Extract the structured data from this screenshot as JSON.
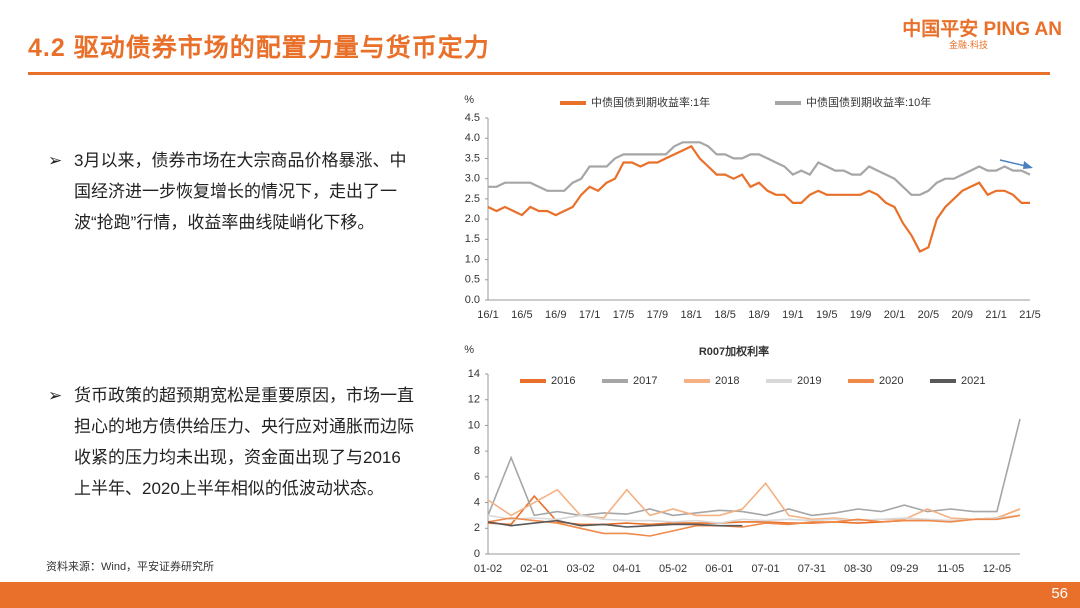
{
  "header": {
    "title": "4.2 驱动债券市场的配置力量与货币定力",
    "logo": "中国平安 PING AN",
    "logo_sub": "金融·科技"
  },
  "bullets": [
    "3月以来，债券市场在大宗商品价格暴涨、中国经济进一步恢复增长的情况下，走出了一波“抢跑”行情，收益率曲线陡峭化下移。",
    "货币政策的超预期宽松是重要原因，市场一直担心的地方债供给压力、央行应对通胀而边际收紧的压力均未出现，资金面出现了与2016上半年、2020上半年相似的低波动状态。"
  ],
  "source": "资料来源：Wind，平安证券研究所",
  "page_number": "56",
  "chart_data": [
    {
      "type": "line",
      "y_unit": "%",
      "categories": [
        "16/1",
        null,
        null,
        null,
        "16/5",
        null,
        null,
        null,
        "16/9",
        null,
        null,
        null,
        "17/1",
        null,
        null,
        null,
        "17/5",
        null,
        null,
        null,
        "17/9",
        null,
        null,
        null,
        "18/1",
        null,
        null,
        null,
        "18/5",
        null,
        null,
        null,
        "18/9",
        null,
        null,
        null,
        "19/1",
        null,
        null,
        null,
        "19/5",
        null,
        null,
        null,
        "19/9",
        null,
        null,
        null,
        "20/1",
        null,
        null,
        null,
        "20/5",
        null,
        null,
        null,
        "20/9",
        null,
        null,
        null,
        "21/1",
        null,
        null,
        null,
        "21/5"
      ],
      "series": [
        {
          "name": "中债国债到期收益率:1年",
          "color": "#e8702a",
          "values": [
            2.3,
            2.2,
            2.3,
            2.2,
            2.1,
            2.3,
            2.2,
            2.2,
            2.1,
            2.2,
            2.3,
            2.6,
            2.8,
            2.7,
            2.9,
            3.0,
            3.4,
            3.4,
            3.3,
            3.4,
            3.4,
            3.5,
            3.6,
            3.7,
            3.8,
            3.5,
            3.3,
            3.1,
            3.1,
            3.0,
            3.1,
            2.8,
            2.9,
            2.7,
            2.6,
            2.6,
            2.4,
            2.4,
            2.6,
            2.7,
            2.6,
            2.6,
            2.6,
            2.6,
            2.6,
            2.7,
            2.6,
            2.4,
            2.3,
            1.9,
            1.6,
            1.2,
            1.3,
            2.0,
            2.3,
            2.5,
            2.7,
            2.8,
            2.9,
            2.6,
            2.7,
            2.7,
            2.6,
            2.4,
            2.4
          ]
        },
        {
          "name": "中债国债到期收益率:10年",
          "color": "#a6a6a6",
          "values": [
            2.8,
            2.8,
            2.9,
            2.9,
            2.9,
            2.9,
            2.8,
            2.7,
            2.7,
            2.7,
            2.9,
            3.0,
            3.3,
            3.3,
            3.3,
            3.5,
            3.6,
            3.6,
            3.6,
            3.6,
            3.6,
            3.6,
            3.8,
            3.9,
            3.9,
            3.9,
            3.8,
            3.6,
            3.6,
            3.5,
            3.5,
            3.6,
            3.6,
            3.5,
            3.4,
            3.3,
            3.1,
            3.2,
            3.1,
            3.4,
            3.3,
            3.2,
            3.2,
            3.1,
            3.1,
            3.3,
            3.2,
            3.1,
            3.0,
            2.8,
            2.6,
            2.6,
            2.7,
            2.9,
            3.0,
            3.0,
            3.1,
            3.2,
            3.3,
            3.2,
            3.2,
            3.3,
            3.2,
            3.2,
            3.1
          ]
        }
      ],
      "ylim": [
        0,
        4.5
      ],
      "yticks": [
        {
          "value": 0,
          "label": "0.0"
        },
        0.5,
        {
          "value": 1,
          "label": "1.0"
        },
        1.5,
        {
          "value": 2,
          "label": "2.0"
        },
        2.5,
        {
          "value": 3,
          "label": "3.0"
        },
        3.5,
        {
          "value": 4,
          "label": "4.0"
        },
        4.5
      ]
    },
    {
      "type": "line",
      "title": "R007加权利率",
      "y_unit": "%",
      "categories": [
        "01-02",
        null,
        "02-01",
        null,
        "03-02",
        null,
        "04-01",
        null,
        "05-02",
        null,
        "06-01",
        null,
        "07-01",
        null,
        "07-31",
        null,
        "08-30",
        null,
        "09-29",
        null,
        "11-05",
        null,
        "12-05",
        null
      ],
      "series": [
        {
          "name": "2016",
          "color": "#e8702a",
          "values": [
            2.4,
            2.3,
            4.5,
            2.5,
            2.3,
            2.3,
            2.4,
            2.3,
            2.4,
            2.4,
            2.4,
            2.5,
            2.5,
            2.4,
            2.4,
            2.5,
            2.4,
            2.5,
            2.6,
            2.6,
            2.6,
            2.7,
            2.8,
            3.5
          ]
        },
        {
          "name": "2017",
          "color": "#a6a6a6",
          "values": [
            3.0,
            7.5,
            3.0,
            3.3,
            3.0,
            3.2,
            3.1,
            3.5,
            3.0,
            3.2,
            3.4,
            3.3,
            3.0,
            3.5,
            3.0,
            3.2,
            3.5,
            3.3,
            3.8,
            3.3,
            3.5,
            3.3,
            3.3,
            10.5
          ]
        },
        {
          "name": "2018",
          "color": "#f4b183",
          "values": [
            4.2,
            3.0,
            4.0,
            5.0,
            3.0,
            2.8,
            5.0,
            3.0,
            3.5,
            3.0,
            3.0,
            3.5,
            5.5,
            3.0,
            2.7,
            2.8,
            2.6,
            2.7,
            2.7,
            3.5,
            2.8,
            2.7,
            2.8,
            3.5
          ]
        },
        {
          "name": "2019",
          "color": "#d9d9d9",
          "values": [
            3.0,
            2.7,
            2.8,
            2.7,
            3.0,
            2.7,
            2.6,
            2.6,
            2.5,
            2.6,
            2.4,
            2.7,
            2.6,
            2.7,
            2.6,
            2.7,
            2.6,
            2.7,
            2.8,
            2.7,
            2.6,
            2.7,
            2.8,
            3.0
          ]
        },
        {
          "name": "2020",
          "color": "#f08a4b",
          "values": [
            2.5,
            2.8,
            2.6,
            2.4,
            2.0,
            1.6,
            1.6,
            1.4,
            1.8,
            2.2,
            2.2,
            2.1,
            2.4,
            2.3,
            2.5,
            2.5,
            2.7,
            2.5,
            2.6,
            2.6,
            2.5,
            2.7,
            2.7,
            3.0
          ]
        },
        {
          "name": "2021",
          "color": "#595959",
          "values": [
            2.5,
            2.2,
            2.4,
            2.6,
            2.2,
            2.3,
            2.1,
            2.2,
            2.3,
            2.3,
            2.2,
            2.2,
            null,
            null,
            null,
            null,
            null,
            null,
            null,
            null,
            null,
            null,
            null,
            null
          ]
        }
      ],
      "ylim": [
        0,
        14
      ],
      "yticks": [
        0,
        2,
        4,
        6,
        8,
        10,
        12,
        14
      ]
    }
  ]
}
